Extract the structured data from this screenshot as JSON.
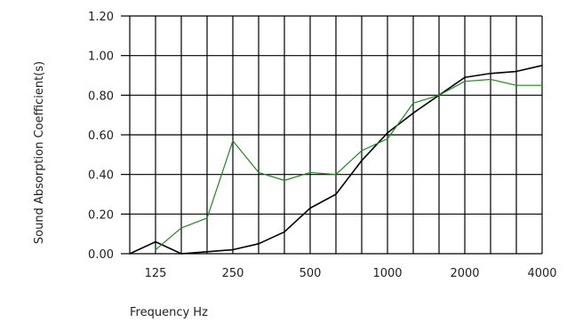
{
  "chart_data": {
    "type": "line",
    "xlabel": "Frequency Hz",
    "ylabel": "Sound Absorption Coefficient(s)",
    "x_scale": "log",
    "x": [
      100,
      125,
      160,
      200,
      250,
      315,
      400,
      500,
      630,
      800,
      1000,
      1250,
      1600,
      2000,
      2500,
      3150,
      4000
    ],
    "x_tick_labels": [
      "125",
      "250",
      "500",
      "1000",
      "2000",
      "4000"
    ],
    "y_tick_labels": [
      "0.00",
      "0.20",
      "0.40",
      "0.60",
      "0.80",
      "1.00",
      "1.20"
    ],
    "ylim": [
      0,
      1.2
    ],
    "grid": true,
    "series": [
      {
        "color": "#000000",
        "values": [
          0.0,
          0.06,
          0.0,
          0.01,
          0.02,
          0.05,
          0.11,
          0.23,
          0.3,
          0.47,
          0.61,
          0.71,
          0.8,
          0.89,
          0.91,
          0.92,
          0.95
        ]
      },
      {
        "color": "#1a8a1a",
        "values": [
          null,
          0.02,
          0.13,
          0.18,
          0.57,
          0.41,
          0.37,
          0.41,
          0.4,
          0.52,
          0.58,
          0.76,
          0.8,
          0.87,
          0.88,
          0.85,
          0.85
        ]
      }
    ]
  }
}
